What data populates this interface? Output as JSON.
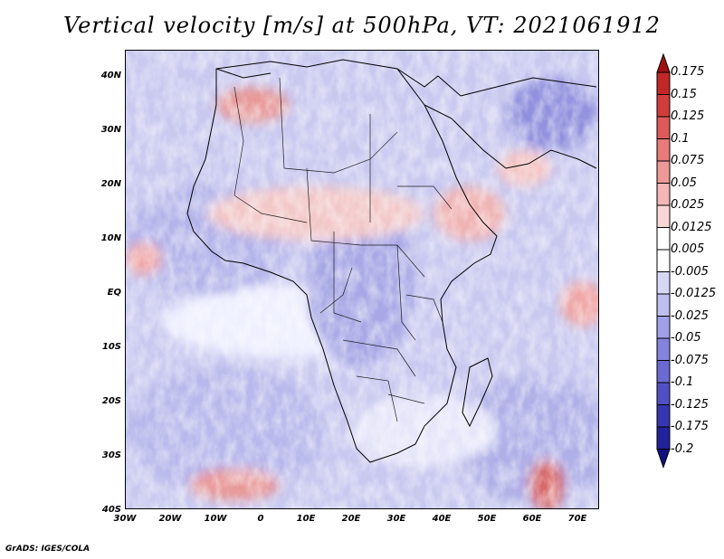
{
  "title": "Vertical velocity [m/s] at 500hPa, VT: 2021061912",
  "footer": "GrADS: IGES/COLA",
  "map": {
    "lat_labels": [
      "40N",
      "30N",
      "20N",
      "10N",
      "EQ",
      "10S",
      "20S",
      "30S",
      "40S"
    ],
    "lon_labels": [
      "30W",
      "20W",
      "10W",
      "0",
      "10E",
      "20E",
      "30E",
      "40E",
      "50E",
      "60E",
      "70E"
    ]
  },
  "colorbar": {
    "labels": [
      "0.175",
      "0.15",
      "0.125",
      "0.1",
      "0.075",
      "0.05",
      "0.025",
      "0.0125",
      "0.005",
      "-0.005",
      "-0.0125",
      "-0.025",
      "-0.05",
      "-0.075",
      "-0.1",
      "-0.125",
      "-0.175",
      "-0.2"
    ],
    "colors": [
      "#a01010",
      "#c02828",
      "#d23c3c",
      "#de5a5a",
      "#e87a7a",
      "#ee9898",
      "#f4b6b6",
      "#f9d6d6",
      "#ffffff",
      "#ffffff",
      "#d8d8f6",
      "#bebef0",
      "#a0a0e8",
      "#8484de",
      "#6a6ad2",
      "#5050c4",
      "#3636b0",
      "#22229a",
      "#101080"
    ]
  }
}
